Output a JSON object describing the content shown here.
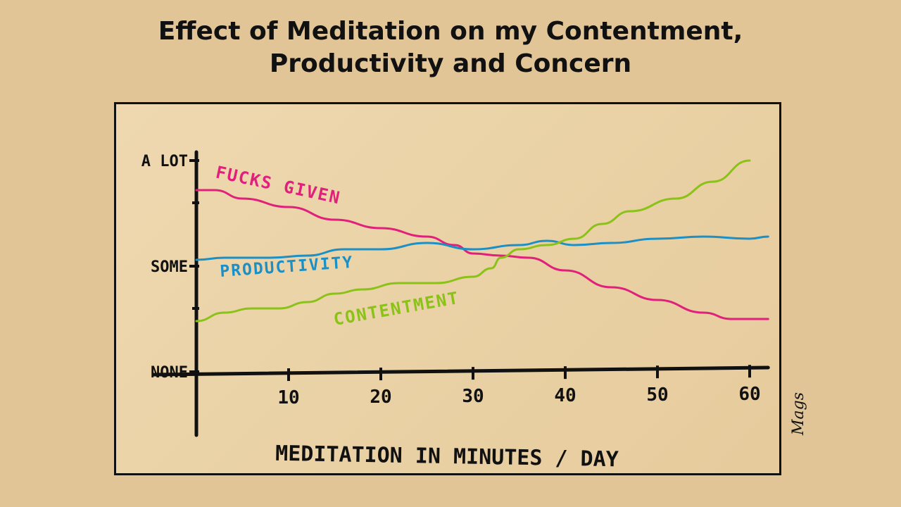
{
  "title_lines": [
    "Effect of Meditation on my Contentment,",
    "Productivity and Concern"
  ],
  "signature": "Mags",
  "chart_data": {
    "type": "line",
    "title": "Effect of Meditation on my Contentment, Productivity and Concern",
    "xlabel": "MEDITATION IN MINUTES / DAY",
    "ylabel": "",
    "x_ticks": [
      10,
      20,
      30,
      40,
      50,
      60
    ],
    "xlim": [
      0,
      62
    ],
    "y_tick_labels": [
      {
        "label": "A LOT",
        "value": 100
      },
      {
        "label": "SOME",
        "value": 50
      },
      {
        "label": "NONE",
        "value": 0
      }
    ],
    "ylim": [
      -8,
      104
    ],
    "grid": false,
    "series": [
      {
        "name": "FUCKS GIVEN",
        "color": "#e0207a",
        "x": [
          0,
          2,
          5,
          10,
          15,
          20,
          25,
          28,
          30,
          33,
          36,
          40,
          45,
          50,
          55,
          58,
          60,
          62
        ],
        "y": [
          86,
          86,
          82,
          78,
          72,
          68,
          64,
          60,
          56,
          55,
          54,
          48,
          40,
          34,
          28,
          25,
          25,
          25
        ]
      },
      {
        "name": "PRODUCTIVITY",
        "color": "#1c8fc4",
        "x": [
          0,
          3,
          8,
          12,
          16,
          20,
          25,
          30,
          35,
          38,
          41,
          45,
          50,
          55,
          60,
          62
        ],
        "y": [
          53,
          54,
          54,
          55,
          58,
          58,
          61,
          58,
          60,
          62,
          60,
          61,
          63,
          64,
          63,
          64
        ]
      },
      {
        "name": "CONTENTMENT",
        "color": "#8ac218",
        "x": [
          0,
          3,
          6,
          9,
          12,
          15,
          18,
          22,
          26,
          30,
          32,
          33,
          35,
          38,
          41,
          44,
          47,
          52,
          56,
          60
        ],
        "y": [
          24,
          28,
          30,
          30,
          33,
          37,
          39,
          42,
          42,
          45,
          49,
          54,
          58,
          60,
          63,
          70,
          76,
          82,
          90,
          100
        ]
      }
    ]
  }
}
